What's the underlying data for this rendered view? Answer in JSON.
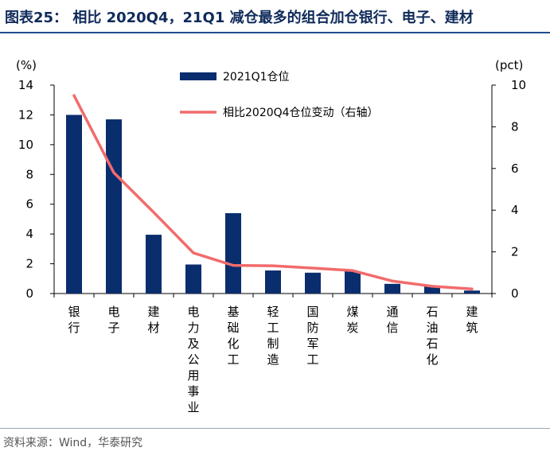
{
  "figure": {
    "title": "图表25：   相比 2020Q4，21Q1 减仓最多的组合加仓银行、电子、建材",
    "source": "资料来源：Wind，华泰研究"
  },
  "chart_data": {
    "type": "bar",
    "categories": [
      "银行",
      "电子",
      "建材",
      "电力及公用事业",
      "基础化工",
      "轻工制造",
      "国防军工",
      "煤炭",
      "通信",
      "石油石化",
      "建筑"
    ],
    "series": [
      {
        "name": "2021Q1仓位",
        "type": "bar",
        "axis": "left",
        "color": "#0a2d6e",
        "values": [
          12.0,
          11.7,
          3.95,
          1.95,
          5.4,
          1.55,
          1.4,
          1.5,
          0.65,
          0.5,
          0.2
        ]
      },
      {
        "name": "相比2020Q4仓位变动（右轴）",
        "type": "line",
        "axis": "right",
        "color": "#f26b6b",
        "values": [
          9.5,
          5.8,
          3.9,
          1.95,
          1.35,
          1.33,
          1.22,
          1.1,
          0.6,
          0.35,
          0.22
        ]
      }
    ],
    "y_left": {
      "label": "(%)",
      "range": [
        0,
        14
      ],
      "ticks": [
        0,
        2,
        4,
        6,
        8,
        10,
        12,
        14
      ]
    },
    "y_right": {
      "label": "(pct)",
      "range": [
        0,
        10
      ],
      "ticks": [
        0,
        2,
        4,
        6,
        8,
        10
      ]
    },
    "grid": false,
    "legend": "top-center"
  }
}
